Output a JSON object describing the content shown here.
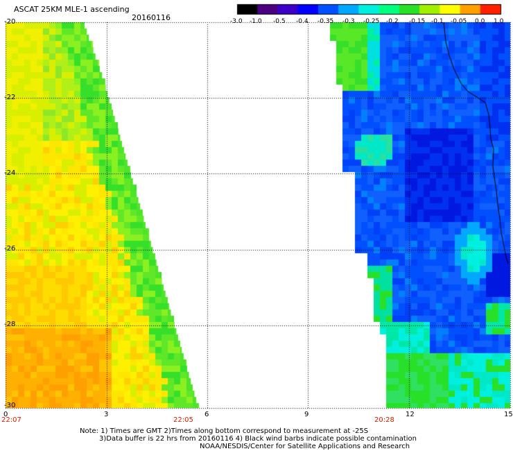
{
  "header": {
    "title": "ASCAT 25KM MLE-1 ascending",
    "date": "20160116"
  },
  "colorbar": {
    "labels": [
      "-3.0",
      "-1.0",
      "-0.5",
      "-0.4",
      "-0.35",
      "-0.3",
      "-0.25",
      "-0.2",
      "-0.15",
      "-0.1",
      "-0.05",
      "0.0",
      "1.0"
    ]
  },
  "map": {
    "lat_labels": [
      "-20",
      "-22",
      "-24",
      "-26",
      "-28",
      "-30"
    ],
    "lon_labels": [
      "0",
      "3",
      "6",
      "9",
      "12",
      "15"
    ],
    "times": [
      "22:07",
      "22:05",
      "20:28"
    ],
    "colors": {
      "orange": "#ffa000",
      "yellow": "#ffee00",
      "yellow_green": "#c8f000",
      "green": "#28e028",
      "cyan": "#00f0e0",
      "blue": "#0050ff",
      "deep_blue": "#0018e0"
    }
  },
  "footer": {
    "note_line1": "Note: 1) Times are GMT 2)Times along bottom correspond to measurement at -25S",
    "note_line2": "3)Data buffer is 22 hrs from 20160116 4) Black wind barbs indicate possible contamination",
    "note_line3": "NOAA/NESDIS/Center for Satellite Applications and Research"
  }
}
